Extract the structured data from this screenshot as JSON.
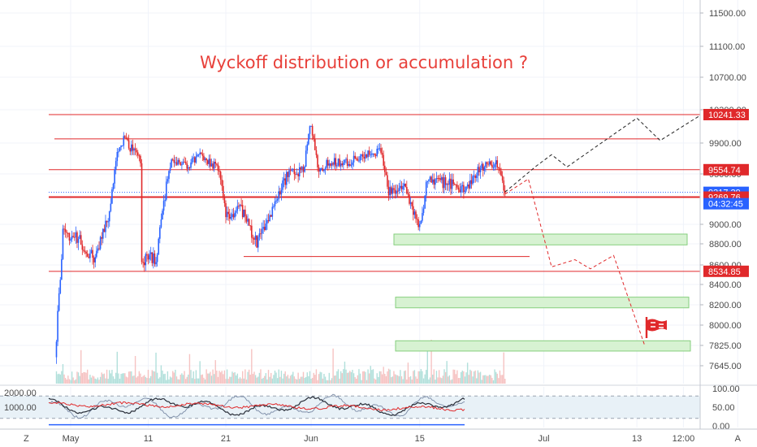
{
  "chart_data": [
    {
      "type": "candlestick",
      "title": "Wyckoff distribution or accumulation ?",
      "ylim": [
        7550,
        11600
      ],
      "y_ticks": [
        "11500.00",
        "11100.00",
        "10700.00",
        "10300.00",
        "9900.00",
        "9500.00",
        "9000.00",
        "8800.00",
        "8600.00",
        "8400.00",
        "8200.00",
        "8000.00",
        "7825.00",
        "7645.00"
      ],
      "x_ticks": [
        {
          "label": "May",
          "date": "2020-05-01"
        },
        {
          "label": "11",
          "date": "2020-05-11"
        },
        {
          "label": "21",
          "date": "2020-05-21"
        },
        {
          "label": "Jun",
          "date": "2020-06-01"
        },
        {
          "label": "15",
          "date": "2020-06-15"
        },
        {
          "label": "Jul",
          "date": "2020-07-01"
        },
        {
          "label": "13",
          "date": "2020-07-13"
        },
        {
          "label": "12:00",
          "date": "2020-07-19"
        },
        {
          "label": "A",
          "date": "2020-07-26"
        }
      ],
      "price_path": [
        {
          "date": "2020-04-29",
          "price": 7720
        },
        {
          "date": "2020-04-30",
          "price": 8900
        },
        {
          "date": "2020-05-02",
          "price": 8850
        },
        {
          "date": "2020-05-04",
          "price": 8650
        },
        {
          "date": "2020-05-06",
          "price": 9100
        },
        {
          "date": "2020-05-07",
          "price": 9800
        },
        {
          "date": "2020-05-08",
          "price": 9950
        },
        {
          "date": "2020-05-10",
          "price": 9650
        },
        {
          "date": "2020-05-10",
          "price": 8600
        },
        {
          "date": "2020-05-11",
          "price": 8700
        },
        {
          "date": "2020-05-12",
          "price": 8650
        },
        {
          "date": "2020-05-13",
          "price": 9200
        },
        {
          "date": "2020-05-14",
          "price": 9700
        },
        {
          "date": "2020-05-16",
          "price": 9600
        },
        {
          "date": "2020-05-18",
          "price": 9750
        },
        {
          "date": "2020-05-20",
          "price": 9550
        },
        {
          "date": "2020-05-21",
          "price": 9100
        },
        {
          "date": "2020-05-23",
          "price": 9150
        },
        {
          "date": "2020-05-25",
          "price": 8800
        },
        {
          "date": "2020-05-27",
          "price": 9150
        },
        {
          "date": "2020-05-29",
          "price": 9500
        },
        {
          "date": "2020-05-31",
          "price": 9550
        },
        {
          "date": "2020-06-01",
          "price": 10150
        },
        {
          "date": "2020-06-02",
          "price": 9500
        },
        {
          "date": "2020-06-03",
          "price": 9650
        },
        {
          "date": "2020-06-06",
          "price": 9650
        },
        {
          "date": "2020-06-08",
          "price": 9750
        },
        {
          "date": "2020-06-10",
          "price": 9800
        },
        {
          "date": "2020-06-11",
          "price": 9300
        },
        {
          "date": "2020-06-13",
          "price": 9400
        },
        {
          "date": "2020-06-15",
          "price": 8950
        },
        {
          "date": "2020-06-16",
          "price": 9450
        },
        {
          "date": "2020-06-19",
          "price": 9400
        },
        {
          "date": "2020-06-21",
          "price": 9350
        },
        {
          "date": "2020-06-23",
          "price": 9600
        },
        {
          "date": "2020-06-25",
          "price": 9620
        },
        {
          "date": "2020-06-26",
          "price": 9290
        }
      ],
      "horizontal_levels": [
        {
          "price": 10241.33,
          "label": "10241.33"
        },
        {
          "price": 9950,
          "label": ""
        },
        {
          "price": 9554.74,
          "label": "9554.74"
        },
        {
          "price": 9317.29,
          "label": "9317.29"
        },
        {
          "price": 9269.76,
          "label": "9269.76"
        },
        {
          "price": 8680,
          "label": ""
        },
        {
          "price": 8534.85,
          "label": "8534.85"
        }
      ],
      "countdown_label": "04:32:45",
      "zones": [
        {
          "price_low": 8790,
          "price_high": 8900
        },
        {
          "price_low": 8170,
          "price_high": 8275
        },
        {
          "price_low": 7775,
          "price_high": 7865
        }
      ],
      "projection_bullish": [
        {
          "date": "2020-06-26",
          "price": 9320
        },
        {
          "date": "2020-06-30",
          "price": 9600
        },
        {
          "date": "2020-07-02",
          "price": 9750
        },
        {
          "date": "2020-07-04",
          "price": 9590
        },
        {
          "date": "2020-07-13",
          "price": 10200
        },
        {
          "date": "2020-07-16",
          "price": 9930
        },
        {
          "date": "2020-07-26",
          "price": 10520
        }
      ],
      "projection_bearish": [
        {
          "date": "2020-06-26",
          "price": 9300
        },
        {
          "date": "2020-06-29",
          "price": 9450
        },
        {
          "date": "2020-07-02",
          "price": 8580
        },
        {
          "date": "2020-07-05",
          "price": 8650
        },
        {
          "date": "2020-07-07",
          "price": 8560
        },
        {
          "date": "2020-07-10",
          "price": 8690
        },
        {
          "date": "2020-07-14",
          "price": 7825
        }
      ],
      "grid": true
    },
    {
      "type": "line",
      "title": "",
      "left_labels": [
        "2000.00",
        "1000.00"
      ],
      "right_ticks": [
        "100.00",
        "50.00",
        "0.00"
      ],
      "axis_corner_label": "Z",
      "band": [
        20,
        80
      ]
    }
  ],
  "colors": {
    "up": "#2962ff",
    "down": "#e0292b",
    "level": "#e0292b",
    "zone_fill": "#d7f2d2",
    "zone_border": "#86cf7d",
    "projection_up": "#222222",
    "projection_down": "#e0292b",
    "title": "#e8403a",
    "current_price_tag": "#2962ff"
  },
  "icons": [
    "flag-icon"
  ]
}
